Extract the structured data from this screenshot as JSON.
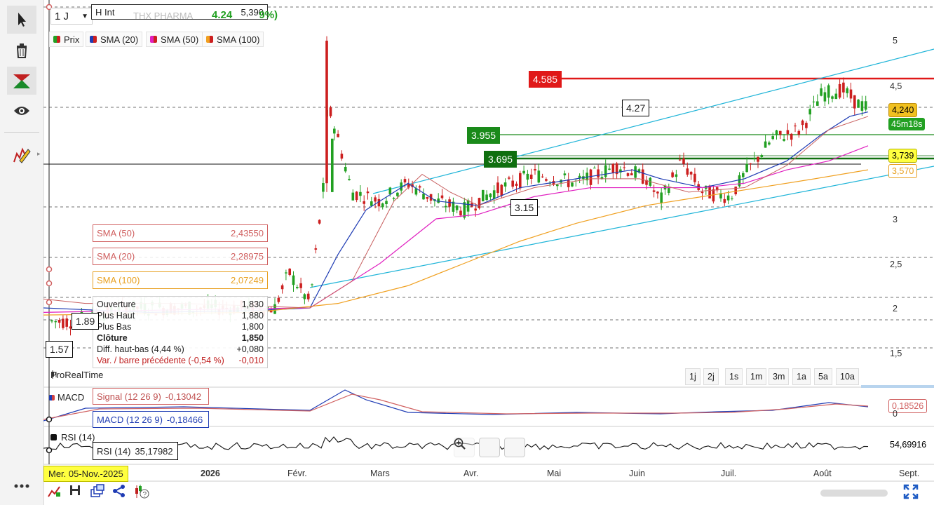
{
  "toolbar": {
    "items": [
      "pointer-icon",
      "trash-icon",
      "drawing-tool-icon",
      "eye-icon",
      "pencil-icon",
      "more-icon"
    ]
  },
  "header": {
    "period": "1 J",
    "instrument": "THX PHARMA",
    "price_change": "4.24",
    "change_pct": "9%)"
  },
  "hint": {
    "label": "H Int",
    "value": "5,390"
  },
  "legend": [
    {
      "label": "Prix",
      "color": "#2ca02c"
    },
    {
      "label": "SMA (20)",
      "color": "#1f3cb4"
    },
    {
      "label": "SMA (50)",
      "color": "#e020c0"
    },
    {
      "label": "SMA (100)",
      "color": "#f0a020"
    }
  ],
  "sma_boxes": [
    {
      "label": "SMA (50)",
      "value": "2,43550",
      "color": "#d06060"
    },
    {
      "label": "SMA (20)",
      "value": "2,28975",
      "color": "#d06060"
    },
    {
      "label": "SMA (100)",
      "value": "2,07249",
      "color": "#e8a020"
    }
  ],
  "ohlc": {
    "open_label": "Ouverture",
    "open": "1,830",
    "high_label": "Plus Haut",
    "high": "1,880",
    "low_label": "Plus Bas",
    "low": "1,800",
    "close_label": "Clôture",
    "close": "1,850",
    "range_label": "Diff. haut-bas (4,44 %)",
    "range": "+0,080",
    "var_label": "Var. / barre précédente (-0,54 %)",
    "var": "-0,010"
  },
  "levels": {
    "red": "4.585",
    "green1": "3.955",
    "green2": "3.695",
    "white1": "4.27",
    "white2": "3.15",
    "left1": "1.89",
    "left2": "1.57"
  },
  "price_axis": [
    "5",
    "4,5",
    "3",
    "2,5",
    "2",
    "1,5"
  ],
  "price_tags": {
    "last": "4,240",
    "timer": "45m18s",
    "sma50": "3,739",
    "sma100": "3,570"
  },
  "source": "ProRealTime",
  "periods": [
    "1j",
    "2j",
    "1s",
    "1m",
    "3m",
    "1a",
    "5a",
    "10a"
  ],
  "macd": {
    "title": "MACD",
    "signal_label": "Signal (12 26 9)",
    "signal_value": "-0,13042",
    "macd_label": "MACD (12 26 9)",
    "macd_value": "-0,18466",
    "right_value": "0,18526",
    "zero": "0"
  },
  "rsi": {
    "title": "RSI (14)",
    "label": "RSI (14)",
    "value": "35,17982",
    "right_value": "54,69916"
  },
  "date_axis": {
    "cursor": "Mer. 05-Nov.-2025",
    "labels": [
      "2026",
      "Févr.",
      "Mars",
      "Avr.",
      "Mai",
      "Juin",
      "Juil.",
      "Août",
      "Sept."
    ]
  },
  "colors": {
    "up": "#22a022",
    "down": "#cc1f1f",
    "sma20": "#1f3cb4",
    "sma50": "#e020c0",
    "sma100": "#f0a020",
    "chan": "#1eb4d8"
  },
  "bottom_bar": [
    "link-icon",
    "save-icon",
    "layers-icon",
    "share-icon",
    "help-icon",
    "fullscreen-icon"
  ]
}
